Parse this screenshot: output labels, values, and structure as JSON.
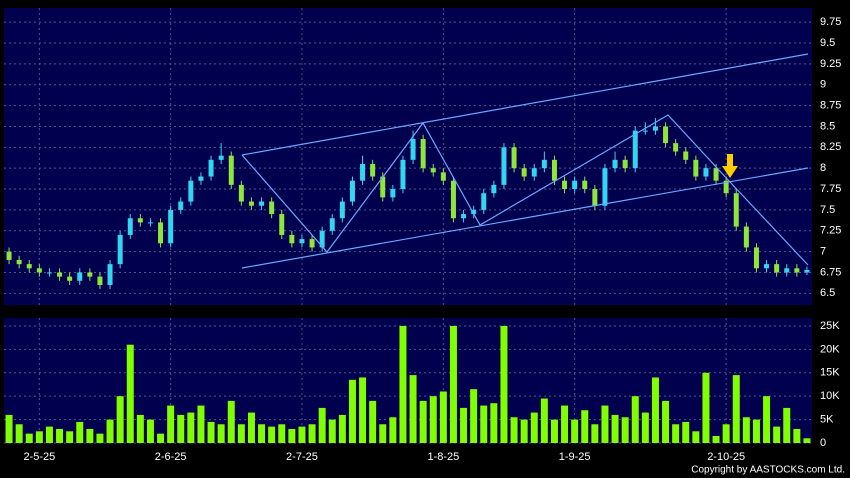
{
  "chart_data": [
    {
      "type": "candlestick",
      "up_color": "#33d6f0",
      "down_color": "#8ee63c",
      "xlim": [
        -0.5,
        79.5
      ],
      "ylim": [
        6.36,
        9.92
      ],
      "yticks": [
        6.5,
        6.75,
        7,
        7.25,
        7.5,
        7.75,
        8,
        8.25,
        8.5,
        8.75,
        9,
        9.25,
        9.5,
        9.75
      ],
      "grid": true,
      "open": [
        7.0,
        6.9,
        6.85,
        6.8,
        6.75,
        6.75,
        6.7,
        6.65,
        6.75,
        6.7,
        6.6,
        6.85,
        7.2,
        7.4,
        7.35,
        7.35,
        7.1,
        7.5,
        7.6,
        7.85,
        7.9,
        8.1,
        8.15,
        7.8,
        7.6,
        7.55,
        7.6,
        7.45,
        7.2,
        7.1,
        7.15,
        7.05,
        7.25,
        7.4,
        7.6,
        7.85,
        8.05,
        7.9,
        7.65,
        7.75,
        8.1,
        8.35,
        8.0,
        7.95,
        7.85,
        7.4,
        7.45,
        7.5,
        7.7,
        7.8,
        8.25,
        8.0,
        7.9,
        8.0,
        8.1,
        7.85,
        7.75,
        7.85,
        7.75,
        7.55,
        8.0,
        8.1,
        8.0,
        8.45,
        8.45,
        8.5,
        8.3,
        8.2,
        8.1,
        7.9,
        8.0,
        7.85,
        7.7,
        7.3,
        7.05,
        6.8,
        6.85,
        6.75,
        6.8,
        6.75
      ],
      "high": [
        7.05,
        6.95,
        6.9,
        6.85,
        6.8,
        6.8,
        6.75,
        6.8,
        6.8,
        6.75,
        6.9,
        7.25,
        7.45,
        7.45,
        7.4,
        7.4,
        7.55,
        7.65,
        7.9,
        7.95,
        8.15,
        8.3,
        8.2,
        7.85,
        7.65,
        7.65,
        7.65,
        7.5,
        7.25,
        7.2,
        7.2,
        7.3,
        7.45,
        7.65,
        7.9,
        8.15,
        8.1,
        7.95,
        7.8,
        8.15,
        8.45,
        8.4,
        8.05,
        8.0,
        7.9,
        7.5,
        7.55,
        7.75,
        7.85,
        8.3,
        8.3,
        8.05,
        8.05,
        8.2,
        8.15,
        7.9,
        7.9,
        7.9,
        7.8,
        8.05,
        8.2,
        8.15,
        8.5,
        8.55,
        8.6,
        8.55,
        8.35,
        8.25,
        8.15,
        8.05,
        8.05,
        7.9,
        7.75,
        7.35,
        7.1,
        6.9,
        6.9,
        6.85,
        6.85,
        6.82
      ],
      "low": [
        6.85,
        6.8,
        6.75,
        6.7,
        6.7,
        6.65,
        6.6,
        6.6,
        6.65,
        6.55,
        6.55,
        6.8,
        7.15,
        7.3,
        7.3,
        7.05,
        7.05,
        7.45,
        7.55,
        7.8,
        7.85,
        8.05,
        7.75,
        7.55,
        7.5,
        7.5,
        7.4,
        7.15,
        7.05,
        7.05,
        7.0,
        7.0,
        7.2,
        7.35,
        7.55,
        7.8,
        7.85,
        7.6,
        7.6,
        7.7,
        8.05,
        7.95,
        7.9,
        7.8,
        7.35,
        7.35,
        7.4,
        7.45,
        7.65,
        7.75,
        7.95,
        7.85,
        7.85,
        7.95,
        7.8,
        7.7,
        7.7,
        7.7,
        7.5,
        7.5,
        7.95,
        7.95,
        7.95,
        8.4,
        8.4,
        8.25,
        8.15,
        8.05,
        7.85,
        7.85,
        7.8,
        7.65,
        7.25,
        7.0,
        6.75,
        6.75,
        6.7,
        6.7,
        6.7,
        6.72
      ],
      "close": [
        6.9,
        6.85,
        6.8,
        6.75,
        6.75,
        6.7,
        6.65,
        6.75,
        6.7,
        6.6,
        6.85,
        7.2,
        7.4,
        7.35,
        7.35,
        7.1,
        7.5,
        7.6,
        7.85,
        7.9,
        8.1,
        8.15,
        7.8,
        7.6,
        7.55,
        7.6,
        7.45,
        7.2,
        7.1,
        7.15,
        7.05,
        7.25,
        7.4,
        7.6,
        7.85,
        8.05,
        7.9,
        7.65,
        7.75,
        8.1,
        8.35,
        8.0,
        7.95,
        7.85,
        7.4,
        7.45,
        7.5,
        7.7,
        7.8,
        8.25,
        8.0,
        7.9,
        8.0,
        8.1,
        7.85,
        7.75,
        7.85,
        7.75,
        7.55,
        8.0,
        8.1,
        8.0,
        8.45,
        8.45,
        8.5,
        8.3,
        8.2,
        8.1,
        7.9,
        8.0,
        7.85,
        7.7,
        7.3,
        7.05,
        6.8,
        6.85,
        6.75,
        6.8,
        6.75,
        6.78
      ]
    },
    {
      "type": "bar",
      "color": "#80ff00",
      "xlim": [
        -0.5,
        79.5
      ],
      "xticks": [
        {
          "value": 3,
          "label": "2-5-25"
        },
        {
          "value": 16,
          "label": "2-6-25"
        },
        {
          "value": 29,
          "label": "2-7-25"
        },
        {
          "value": 43,
          "label": "1-8-25"
        },
        {
          "value": 56,
          "label": "1-9-25"
        },
        {
          "value": 71,
          "label": "2-10-25"
        }
      ],
      "ylim": [
        0,
        26700
      ],
      "yticks": [
        0,
        {
          "value": 5000,
          "label": "5K"
        },
        {
          "value": 10000,
          "label": "10K"
        },
        {
          "value": 15000,
          "label": "15K"
        },
        {
          "value": 20000,
          "label": "20K"
        },
        {
          "value": 25000,
          "label": "25K"
        }
      ],
      "grid": true,
      "values": [
        6000,
        4000,
        2000,
        2500,
        3500,
        3000,
        2500,
        4500,
        3000,
        2000,
        5000,
        10000,
        21000,
        6000,
        5000,
        2000,
        8000,
        6000,
        6500,
        8000,
        4500,
        4000,
        9000,
        4000,
        6500,
        4000,
        3500,
        4000,
        3000,
        3500,
        4000,
        7500,
        5000,
        6000,
        13500,
        14000,
        9000,
        4000,
        5500,
        25000,
        14500,
        9000,
        10000,
        11000,
        25000,
        7500,
        11500,
        8000,
        8500,
        25000,
        5500,
        5000,
        6500,
        9500,
        5000,
        8000,
        5000,
        7000,
        4000,
        8000,
        6000,
        5500,
        10000,
        6500,
        14000,
        9000,
        4000,
        4500,
        2500,
        15000,
        1500,
        4000,
        14500,
        5500,
        5000,
        10000,
        3500,
        7500,
        3000,
        1000
      ],
      "copyright": "Copyright by AASTOCKS.com Ltd."
    }
  ]
}
